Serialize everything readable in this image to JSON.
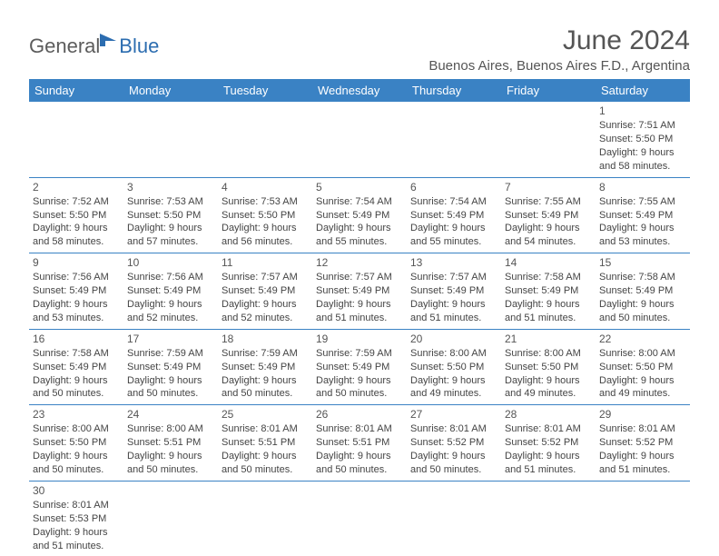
{
  "logo": {
    "part1": "General",
    "part2": "Blue"
  },
  "title": "June 2024",
  "location": "Buenos Aires, Buenos Aires F.D., Argentina",
  "colors": {
    "header_bg": "#3a82c4",
    "header_text": "#ffffff",
    "logo_gray": "#5c5c5c",
    "logo_blue": "#2c6db0",
    "text": "#444444",
    "row_separator": "#3a82c4"
  },
  "daysOfWeek": [
    "Sunday",
    "Monday",
    "Tuesday",
    "Wednesday",
    "Thursday",
    "Friday",
    "Saturday"
  ],
  "weeks": [
    [
      null,
      null,
      null,
      null,
      null,
      null,
      {
        "n": "1",
        "sunrise": "7:51 AM",
        "sunset": "5:50 PM",
        "daylight": "9 hours and 58 minutes."
      }
    ],
    [
      {
        "n": "2",
        "sunrise": "7:52 AM",
        "sunset": "5:50 PM",
        "daylight": "9 hours and 58 minutes."
      },
      {
        "n": "3",
        "sunrise": "7:53 AM",
        "sunset": "5:50 PM",
        "daylight": "9 hours and 57 minutes."
      },
      {
        "n": "4",
        "sunrise": "7:53 AM",
        "sunset": "5:50 PM",
        "daylight": "9 hours and 56 minutes."
      },
      {
        "n": "5",
        "sunrise": "7:54 AM",
        "sunset": "5:49 PM",
        "daylight": "9 hours and 55 minutes."
      },
      {
        "n": "6",
        "sunrise": "7:54 AM",
        "sunset": "5:49 PM",
        "daylight": "9 hours and 55 minutes."
      },
      {
        "n": "7",
        "sunrise": "7:55 AM",
        "sunset": "5:49 PM",
        "daylight": "9 hours and 54 minutes."
      },
      {
        "n": "8",
        "sunrise": "7:55 AM",
        "sunset": "5:49 PM",
        "daylight": "9 hours and 53 minutes."
      }
    ],
    [
      {
        "n": "9",
        "sunrise": "7:56 AM",
        "sunset": "5:49 PM",
        "daylight": "9 hours and 53 minutes."
      },
      {
        "n": "10",
        "sunrise": "7:56 AM",
        "sunset": "5:49 PM",
        "daylight": "9 hours and 52 minutes."
      },
      {
        "n": "11",
        "sunrise": "7:57 AM",
        "sunset": "5:49 PM",
        "daylight": "9 hours and 52 minutes."
      },
      {
        "n": "12",
        "sunrise": "7:57 AM",
        "sunset": "5:49 PM",
        "daylight": "9 hours and 51 minutes."
      },
      {
        "n": "13",
        "sunrise": "7:57 AM",
        "sunset": "5:49 PM",
        "daylight": "9 hours and 51 minutes."
      },
      {
        "n": "14",
        "sunrise": "7:58 AM",
        "sunset": "5:49 PM",
        "daylight": "9 hours and 51 minutes."
      },
      {
        "n": "15",
        "sunrise": "7:58 AM",
        "sunset": "5:49 PM",
        "daylight": "9 hours and 50 minutes."
      }
    ],
    [
      {
        "n": "16",
        "sunrise": "7:58 AM",
        "sunset": "5:49 PM",
        "daylight": "9 hours and 50 minutes."
      },
      {
        "n": "17",
        "sunrise": "7:59 AM",
        "sunset": "5:49 PM",
        "daylight": "9 hours and 50 minutes."
      },
      {
        "n": "18",
        "sunrise": "7:59 AM",
        "sunset": "5:49 PM",
        "daylight": "9 hours and 50 minutes."
      },
      {
        "n": "19",
        "sunrise": "7:59 AM",
        "sunset": "5:49 PM",
        "daylight": "9 hours and 50 minutes."
      },
      {
        "n": "20",
        "sunrise": "8:00 AM",
        "sunset": "5:50 PM",
        "daylight": "9 hours and 49 minutes."
      },
      {
        "n": "21",
        "sunrise": "8:00 AM",
        "sunset": "5:50 PM",
        "daylight": "9 hours and 49 minutes."
      },
      {
        "n": "22",
        "sunrise": "8:00 AM",
        "sunset": "5:50 PM",
        "daylight": "9 hours and 49 minutes."
      }
    ],
    [
      {
        "n": "23",
        "sunrise": "8:00 AM",
        "sunset": "5:50 PM",
        "daylight": "9 hours and 50 minutes."
      },
      {
        "n": "24",
        "sunrise": "8:00 AM",
        "sunset": "5:51 PM",
        "daylight": "9 hours and 50 minutes."
      },
      {
        "n": "25",
        "sunrise": "8:01 AM",
        "sunset": "5:51 PM",
        "daylight": "9 hours and 50 minutes."
      },
      {
        "n": "26",
        "sunrise": "8:01 AM",
        "sunset": "5:51 PM",
        "daylight": "9 hours and 50 minutes."
      },
      {
        "n": "27",
        "sunrise": "8:01 AM",
        "sunset": "5:52 PM",
        "daylight": "9 hours and 50 minutes."
      },
      {
        "n": "28",
        "sunrise": "8:01 AM",
        "sunset": "5:52 PM",
        "daylight": "9 hours and 51 minutes."
      },
      {
        "n": "29",
        "sunrise": "8:01 AM",
        "sunset": "5:52 PM",
        "daylight": "9 hours and 51 minutes."
      }
    ],
    [
      {
        "n": "30",
        "sunrise": "8:01 AM",
        "sunset": "5:53 PM",
        "daylight": "9 hours and 51 minutes."
      },
      null,
      null,
      null,
      null,
      null,
      null
    ]
  ],
  "labels": {
    "sunrise": "Sunrise: ",
    "sunset": "Sunset: ",
    "daylight": "Daylight: "
  }
}
